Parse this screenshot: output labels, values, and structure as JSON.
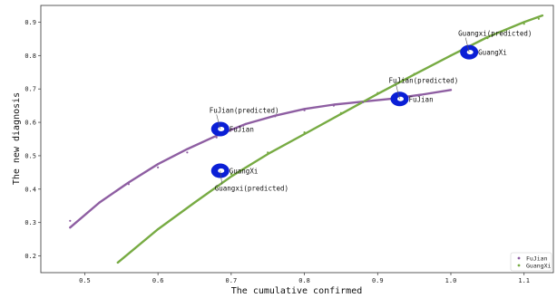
{
  "chart_data": {
    "type": "scatter",
    "xlabel": "The cumulative confirmed",
    "ylabel": "The new diagnosis",
    "xlim": [
      0.44,
      1.14
    ],
    "ylim": [
      0.15,
      0.95
    ],
    "xticks": [
      0.5,
      0.6,
      0.7,
      0.8,
      0.9,
      1.0,
      1.1
    ],
    "yticks": [
      0.2,
      0.3,
      0.4,
      0.5,
      0.6,
      0.7,
      0.8,
      0.9
    ],
    "xtick_labels": [
      "0.5",
      "0.6",
      "0.7",
      "0.8",
      "0.9",
      "1.0",
      "1.1"
    ],
    "ytick_labels": [
      "0.2",
      "0.3",
      "0.4",
      "0.5",
      "0.6",
      "0.7",
      "0.8",
      "0.9"
    ],
    "legend_position": "bottom-right",
    "series": [
      {
        "name": "FuJian",
        "color": "#8e5ea2",
        "fit_curve": [
          [
            0.48,
            0.285
          ],
          [
            0.52,
            0.36
          ],
          [
            0.56,
            0.42
          ],
          [
            0.6,
            0.475
          ],
          [
            0.64,
            0.52
          ],
          [
            0.68,
            0.56
          ],
          [
            0.72,
            0.595
          ],
          [
            0.76,
            0.62
          ],
          [
            0.8,
            0.64
          ],
          [
            0.84,
            0.653
          ],
          [
            0.88,
            0.662
          ],
          [
            0.92,
            0.671
          ],
          [
            0.96,
            0.683
          ],
          [
            1.0,
            0.697
          ]
        ],
        "points": [
          [
            0.48,
            0.305
          ],
          [
            0.52,
            0.36
          ],
          [
            0.56,
            0.415
          ],
          [
            0.6,
            0.465
          ],
          [
            0.64,
            0.51
          ],
          [
            0.68,
            0.555
          ],
          [
            0.7,
            0.58
          ],
          [
            0.72,
            0.595
          ],
          [
            0.76,
            0.618
          ],
          [
            0.8,
            0.636
          ],
          [
            0.84,
            0.65
          ],
          [
            0.88,
            0.66
          ]
        ]
      },
      {
        "name": "GuangXi",
        "color": "#77ab43",
        "fit_curve": [
          [
            0.545,
            0.18
          ],
          [
            0.6,
            0.28
          ],
          [
            0.65,
            0.36
          ],
          [
            0.7,
            0.438
          ],
          [
            0.75,
            0.505
          ],
          [
            0.8,
            0.565
          ],
          [
            0.85,
            0.625
          ],
          [
            0.9,
            0.685
          ],
          [
            0.95,
            0.743
          ],
          [
            1.0,
            0.8
          ],
          [
            1.05,
            0.855
          ],
          [
            1.1,
            0.9
          ],
          [
            1.125,
            0.92
          ]
        ],
        "points": [
          [
            0.7,
            0.445
          ],
          [
            0.75,
            0.51
          ],
          [
            0.8,
            0.57
          ],
          [
            0.85,
            0.628
          ],
          [
            0.9,
            0.688
          ],
          [
            0.95,
            0.745
          ],
          [
            1.0,
            0.8
          ],
          [
            1.05,
            0.852
          ],
          [
            1.1,
            0.895
          ],
          [
            1.12,
            0.91
          ]
        ]
      }
    ],
    "markers": [
      {
        "name": "FuJian",
        "x": 0.685,
        "y": 0.58,
        "label": "FuJian",
        "pred_label": "FuJian(predicted)"
      },
      {
        "name": "GuangXi",
        "x": 0.685,
        "y": 0.455,
        "label": "GuangXi",
        "pred_label": "Guangxi(predicted)"
      },
      {
        "name": "FuJian",
        "x": 0.93,
        "y": 0.67,
        "label": "FuJian",
        "pred_label": "FuJian(predicted)"
      },
      {
        "name": "GuangXi",
        "x": 1.025,
        "y": 0.81,
        "label": "GuangXi",
        "pred_label": "Guangxi(predicted)"
      }
    ]
  }
}
